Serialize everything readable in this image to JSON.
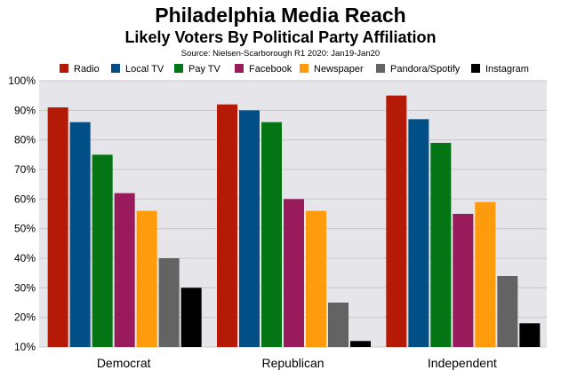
{
  "chart_data": {
    "type": "bar",
    "title": "Philadelphia Media Reach",
    "subtitle": "Likely Voters By Political Party Affiliation",
    "source": "Source: Nielsen-Scarborough R1 2020: Jan19-Jan20",
    "categories": [
      "Democrat",
      "Republican",
      "Independent"
    ],
    "series": [
      {
        "name": "Radio",
        "color": "#b41a06",
        "values": [
          91,
          92,
          95
        ]
      },
      {
        "name": "Local TV",
        "color": "#014f86",
        "values": [
          86,
          90,
          87
        ]
      },
      {
        "name": "Pay TV",
        "color": "#047515",
        "values": [
          75,
          86,
          79
        ]
      },
      {
        "name": "Facebook",
        "color": "#9a1b5c",
        "values": [
          62,
          60,
          55
        ]
      },
      {
        "name": "Newspaper",
        "color": "#ff9b0d",
        "values": [
          56,
          56,
          59
        ]
      },
      {
        "name": "Pandora/Spotify",
        "color": "#636363",
        "values": [
          40,
          25,
          34
        ]
      },
      {
        "name": "Instagram",
        "color": "#000000",
        "values": [
          30,
          12,
          18
        ]
      }
    ],
    "ylim": [
      10,
      100
    ],
    "yticks": [
      "10%",
      "20%",
      "30%",
      "40%",
      "50%",
      "60%",
      "70%",
      "80%",
      "90%",
      "100%"
    ],
    "grid": true,
    "legend_position": "top",
    "plot_background": "#e6e6ea"
  }
}
